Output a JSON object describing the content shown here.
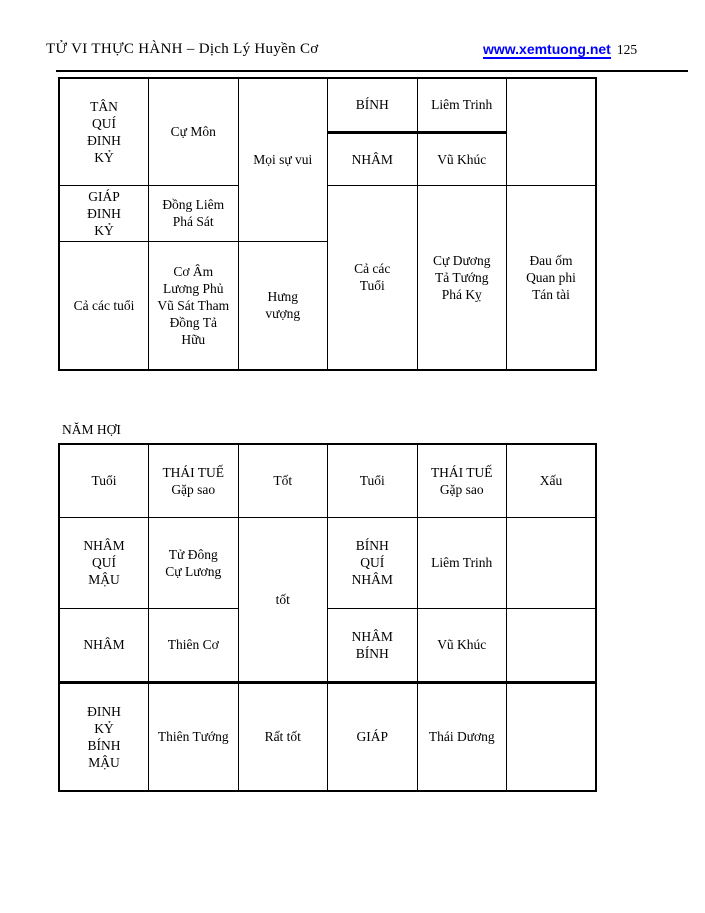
{
  "header": {
    "title": "TỬ VI THỰC HÀNH – Dịch Lý Huyền Cơ",
    "link_text": "www.xemtuong.net",
    "page_number": "125",
    "link_color": "#0000ff"
  },
  "section_label": "NĂM HỢI",
  "table1": {
    "ages_top": "TÂN\nQUÍ\nĐINH\nKỶ",
    "stars_top": "Cự Môn",
    "outcome_top": "Mọi sự vui",
    "right_age_1": "BÍNH",
    "right_star_1": "Liêm Trinh",
    "right_empty": "",
    "right_age_2": "NHÂM",
    "right_star_2": "Vũ Khúc",
    "ages_mid": "GIÁP\nĐINH\nKỶ",
    "stars_mid": "Đồng Liêm\nPhá Sát",
    "right_ages_bottom": "Cả các\nTuổi",
    "right_stars_bottom": "Cự Dương\nTả Tướng\nPhá Kỵ",
    "right_outcome_bottom": "Đau ốm\nQuan phi\nTán tài",
    "ages_bottom": "Cả các tuổi",
    "stars_bottom": "Cơ Âm\nLương Phủ\nVũ Sát Tham\nĐồng Tả\nHữu",
    "outcome_bottom": "Hưng\nvượng"
  },
  "table2": {
    "headers": [
      "Tuổi",
      "THÁI TUẾ\nGặp sao",
      "Tốt",
      "Tuổi",
      "THÁI TUẾ\nGặp sao",
      "Xấu"
    ],
    "r2": {
      "c1": "NHÂM\nQUÍ\nMẬU",
      "c2": "Tử Đông\nCự Lương",
      "c3": "tốt",
      "c4": "BÍNH\nQUÍ\nNHÂM",
      "c5": "Liêm Trinh",
      "c6": ""
    },
    "r3": {
      "c1": "NHÂM",
      "c2": "Thiên Cơ",
      "c4": "NHÂM\nBÍNH",
      "c5": "Vũ Khúc",
      "c6": ""
    },
    "r4": {
      "c1": "ĐINH\nKỶ\nBÍNH\nMẬU",
      "c2": "Thiên Tướng",
      "c3": "Rất tốt",
      "c4": "GIÁP",
      "c5": "Thái Dương",
      "c6": ""
    }
  }
}
